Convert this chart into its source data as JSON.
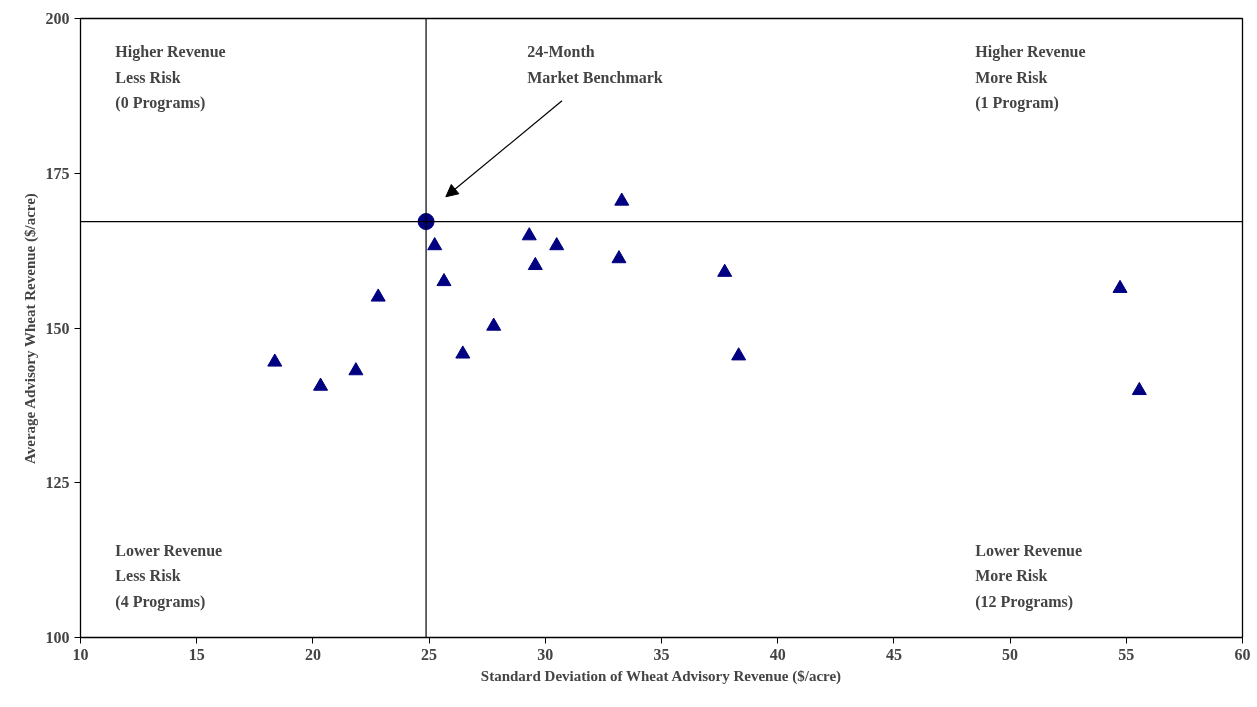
{
  "chart_data": {
    "type": "scatter",
    "xlabel": "Standard Deviation of Wheat Advisory Revenue ($/acre)",
    "ylabel": "Average Advisory Wheat Revenue ($/acre)",
    "xlim": [
      10,
      60
    ],
    "xticks": [
      10,
      15,
      20,
      25,
      30,
      35,
      40,
      45,
      50,
      55,
      60
    ],
    "ylim": [
      100,
      200
    ],
    "yticks": [
      100,
      125,
      150,
      175,
      200
    ],
    "grid": false,
    "series": [
      {
        "color": "#000080",
        "marker": "triangle",
        "x": [
          18.36,
          20.33,
          21.85,
          22.81,
          25.24,
          25.64,
          26.45,
          27.78,
          29.31,
          29.57,
          30.49,
          33.29,
          33.17,
          37.72,
          38.32,
          54.73,
          55.56
        ],
        "values": [
          144.5,
          140.6,
          143.1,
          155.0,
          163.3,
          157.5,
          145.8,
          150.3,
          164.9,
          160.1,
          163.3,
          170.5,
          161.2,
          159.0,
          145.5,
          156.4,
          139.9
        ]
      },
      {
        "color": "#000080",
        "marker": "circle",
        "x": [
          24.87
        ],
        "values": [
          167.2
        ]
      }
    ],
    "ref_lines": [
      {
        "axis": "x",
        "value": 24.87,
        "color": "#000000"
      },
      {
        "axis": "y",
        "value": 167.2,
        "color": "#000000"
      }
    ],
    "annotations": [
      "Higher Revenue\nLess Risk\n(0 Programs)",
      "Higher Revenue\nMore Risk\n(1 Program)",
      "Lower Revenue\nLess Risk\n(4 Programs)",
      "Lower Revenue\nMore Risk\n(12 Programs)",
      "24-Month\nMarket Benchmark"
    ]
  }
}
